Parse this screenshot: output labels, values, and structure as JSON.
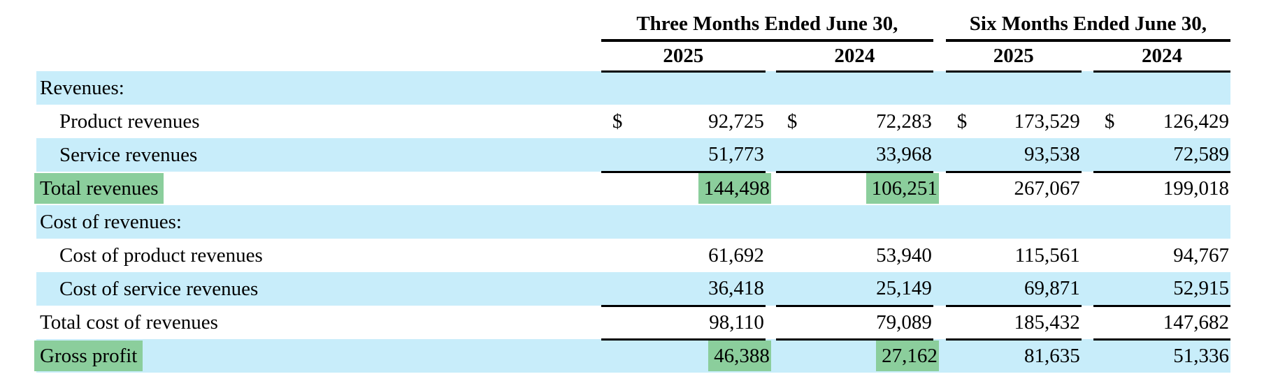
{
  "table": {
    "col_groups": [
      {
        "label": "Three Months Ended June 30,",
        "years": [
          "2025",
          "2024"
        ]
      },
      {
        "label": "Six Months Ended June 30,",
        "years": [
          "2025",
          "2024"
        ]
      }
    ],
    "rows": [
      {
        "label": "Revenues:",
        "section": true,
        "indent": false,
        "dollar": false,
        "values": [
          "",
          "",
          "",
          ""
        ],
        "value_highlights": [
          false,
          false,
          false,
          false
        ],
        "label_highlight": false,
        "underline": false
      },
      {
        "label": "Product revenues",
        "section": false,
        "indent": true,
        "dollar": true,
        "values": [
          "92,725",
          "72,283",
          "173,529",
          "126,429"
        ],
        "value_highlights": [
          false,
          false,
          false,
          false
        ],
        "label_highlight": false,
        "underline": false
      },
      {
        "label": "Service revenues",
        "section": false,
        "indent": true,
        "dollar": false,
        "values": [
          "51,773",
          "33,968",
          "93,538",
          "72,589"
        ],
        "value_highlights": [
          false,
          false,
          false,
          false
        ],
        "label_highlight": false,
        "underline": true
      },
      {
        "label": "Total revenues",
        "section": false,
        "indent": false,
        "dollar": false,
        "values": [
          "144,498",
          "106,251",
          "267,067",
          "199,018"
        ],
        "value_highlights": [
          true,
          true,
          false,
          false
        ],
        "label_highlight": true,
        "underline": false
      },
      {
        "label": "Cost of revenues:",
        "section": true,
        "indent": false,
        "dollar": false,
        "values": [
          "",
          "",
          "",
          ""
        ],
        "value_highlights": [
          false,
          false,
          false,
          false
        ],
        "label_highlight": false,
        "underline": false
      },
      {
        "label": "Cost of product revenues",
        "section": false,
        "indent": true,
        "dollar": false,
        "values": [
          "61,692",
          "53,940",
          "115,561",
          "94,767"
        ],
        "value_highlights": [
          false,
          false,
          false,
          false
        ],
        "label_highlight": false,
        "underline": false
      },
      {
        "label": "Cost of service revenues",
        "section": false,
        "indent": true,
        "dollar": false,
        "values": [
          "36,418",
          "25,149",
          "69,871",
          "52,915"
        ],
        "value_highlights": [
          false,
          false,
          false,
          false
        ],
        "label_highlight": false,
        "underline": true
      },
      {
        "label": "Total cost of revenues",
        "section": false,
        "indent": false,
        "dollar": false,
        "values": [
          "98,110",
          "79,089",
          "185,432",
          "147,682"
        ],
        "value_highlights": [
          false,
          false,
          false,
          false
        ],
        "label_highlight": false,
        "underline": true
      },
      {
        "label": "Gross profit",
        "section": false,
        "indent": false,
        "dollar": false,
        "values": [
          "46,388",
          "27,162",
          "81,635",
          "51,336"
        ],
        "value_highlights": [
          true,
          true,
          false,
          false
        ],
        "label_highlight": true,
        "underline": false
      }
    ],
    "colors": {
      "row_stripe": "#c8edfa",
      "highlight": "#8bce9c",
      "text": "#000000",
      "rule": "#000000"
    }
  }
}
